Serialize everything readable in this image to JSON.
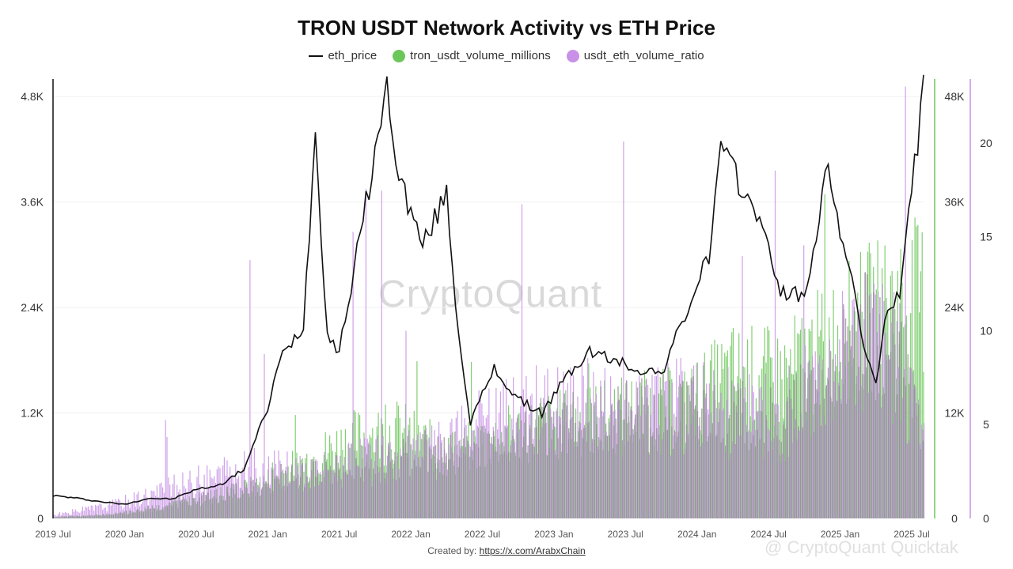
{
  "header": {
    "title": "TRON USDT Network Activity vs ETH Price"
  },
  "legend": [
    {
      "label": "eth_price",
      "color": "#111111",
      "kind": "line"
    },
    {
      "label": "tron_usdt_volume_millions",
      "color": "#6cc75a",
      "kind": "dot"
    },
    {
      "label": "usdt_eth_volume_ratio",
      "color": "#c890e6",
      "kind": "dot"
    }
  ],
  "watermark": "CryptoQuant",
  "footer": {
    "created_by_label": "Created by:",
    "created_by_link": "https://x.com/ArabxChain"
  },
  "corner_watermark": "@ CryptoQuant Quicktak",
  "chart_data": {
    "type": "line",
    "title": "TRON USDT Network Activity vs ETH Price",
    "x_ticks": [
      "2019 Jul",
      "2020 Jan",
      "2020 Jul",
      "2021 Jan",
      "2021 Jul",
      "2022 Jan",
      "2022 Jul",
      "2023 Jan",
      "2023 Jul",
      "2024 Jan",
      "2024 Jul",
      "2025 Jan",
      "2025 Jul"
    ],
    "x_range": [
      "2019-07",
      "2025-08"
    ],
    "y_left": {
      "ticks": [
        "0",
        "1.2K",
        "2.4K",
        "3.6K",
        "4.8K"
      ],
      "range": [
        0,
        5000
      ]
    },
    "y_right1": {
      "ticks": [
        "0",
        "12K",
        "24K",
        "36K",
        "48K"
      ],
      "range": [
        0,
        50000
      ]
    },
    "y_right2": {
      "ticks": [
        "0",
        "5",
        "10",
        "15",
        "20"
      ],
      "range": [
        0,
        23.4
      ]
    },
    "grid": true,
    "legend_position": "top-center",
    "series": [
      {
        "name": "eth_price",
        "axis": "left",
        "style": "line",
        "color": "#111111",
        "x": [
          "2019-07",
          "2019-09",
          "2019-11",
          "2020-01",
          "2020-03",
          "2020-05",
          "2020-07",
          "2020-09",
          "2020-11",
          "2021-01",
          "2021-02",
          "2021-04",
          "2021-05",
          "2021-06",
          "2021-07",
          "2021-09",
          "2021-11",
          "2021-12",
          "2022-02",
          "2022-04",
          "2022-05",
          "2022-06",
          "2022-08",
          "2022-10",
          "2022-12",
          "2023-02",
          "2023-04",
          "2023-06",
          "2023-08",
          "2023-10",
          "2023-12",
          "2024-02",
          "2024-03",
          "2024-05",
          "2024-06",
          "2024-08",
          "2024-10",
          "2024-12",
          "2025-01",
          "2025-03",
          "2025-04",
          "2025-05",
          "2025-06",
          "2025-07",
          "2025-08"
        ],
        "y": [
          260,
          230,
          190,
          160,
          230,
          220,
          330,
          380,
          560,
          1250,
          1800,
          2200,
          4400,
          2100,
          1900,
          3400,
          4900,
          3900,
          3100,
          3700,
          2100,
          1100,
          1700,
          1350,
          1200,
          1600,
          1900,
          1800,
          1700,
          1650,
          2300,
          3000,
          4200,
          3700,
          3500,
          2600,
          2500,
          4000,
          3300,
          2000,
          1500,
          2400,
          2600,
          3700,
          4900
        ]
      },
      {
        "name": "tron_usdt_volume_millions",
        "axis": "right1",
        "style": "bars",
        "color": "#6cc75a",
        "x": [
          "2019-07",
          "2019-12",
          "2020-06",
          "2020-12",
          "2021-04",
          "2021-08",
          "2021-12",
          "2022-04",
          "2022-08",
          "2022-12",
          "2023-04",
          "2023-08",
          "2023-12",
          "2024-04",
          "2024-08",
          "2024-12",
          "2025-03",
          "2025-06",
          "2025-08"
        ],
        "y": [
          200,
          500,
          2000,
          4000,
          7000,
          10000,
          11000,
          8000,
          10000,
          11500,
          12500,
          13500,
          14000,
          18000,
          17500,
          22000,
          25000,
          27000,
          28000
        ]
      },
      {
        "name": "usdt_eth_volume_ratio",
        "axis": "right2",
        "style": "bars",
        "color": "#c890e6",
        "x": [
          "2019-07",
          "2019-12",
          "2020-06",
          "2020-12",
          "2021-04",
          "2021-08",
          "2021-12",
          "2022-04",
          "2022-08",
          "2022-12",
          "2023-04",
          "2023-08",
          "2023-12",
          "2024-04",
          "2024-08",
          "2024-12",
          "2025-03",
          "2025-06",
          "2025-08"
        ],
        "y": [
          0.2,
          0.8,
          2.0,
          3.0,
          2.6,
          3.2,
          3.6,
          4.2,
          5.8,
          6.5,
          6.7,
          6.3,
          6.8,
          6.2,
          5.8,
          8.5,
          11.0,
          9.0,
          5.0
        ]
      }
    ]
  }
}
